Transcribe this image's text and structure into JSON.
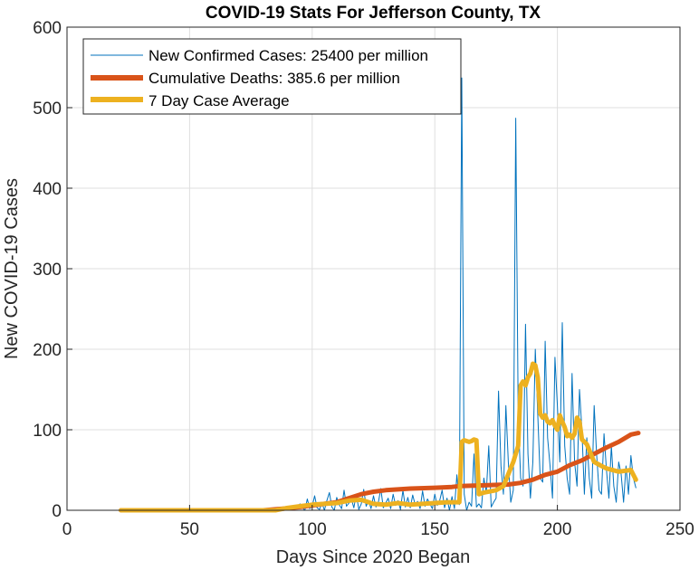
{
  "chart_data": {
    "type": "line",
    "title": "COVID-19 Stats For Jefferson County, TX",
    "xlabel": "Days Since 2020 Began",
    "ylabel": "New COVID-19 Cases",
    "xlim": [
      0,
      250
    ],
    "ylim": [
      0,
      600
    ],
    "xticks": [
      0,
      50,
      100,
      150,
      200,
      250
    ],
    "yticks": [
      0,
      100,
      200,
      300,
      400,
      500,
      600
    ],
    "grid": true,
    "legend_position": "top-left",
    "series": [
      {
        "name": "New Confirmed Cases: 25400 per million",
        "color": "#0072BD",
        "style": "thin",
        "x": [
          22,
          40,
          60,
          80,
          85,
          88,
          90,
          92,
          94,
          95,
          96,
          97,
          98,
          99,
          100,
          101,
          102,
          103,
          104,
          105,
          106,
          107,
          108,
          109,
          110,
          111,
          112,
          113,
          114,
          115,
          116,
          117,
          118,
          119,
          120,
          121,
          122,
          123,
          124,
          125,
          126,
          127,
          128,
          129,
          130,
          131,
          132,
          133,
          134,
          135,
          136,
          137,
          138,
          139,
          140,
          141,
          142,
          143,
          144,
          145,
          146,
          147,
          148,
          149,
          150,
          151,
          152,
          153,
          154,
          155,
          156,
          157,
          158,
          159,
          160,
          161,
          162,
          163,
          164,
          165,
          166,
          167,
          168,
          169,
          170,
          171,
          172,
          173,
          174,
          175,
          176,
          177,
          178,
          179,
          180,
          181,
          182,
          183,
          184,
          185,
          186,
          187,
          188,
          189,
          190,
          191,
          192,
          193,
          194,
          195,
          196,
          197,
          198,
          199,
          200,
          201,
          202,
          203,
          204,
          205,
          206,
          207,
          208,
          209,
          210,
          211,
          212,
          213,
          214,
          215,
          216,
          217,
          218,
          219,
          220,
          221,
          222,
          223,
          224,
          225,
          226,
          227,
          228,
          229,
          230,
          231,
          232
        ],
        "y": [
          0,
          0,
          0,
          0,
          0,
          1,
          2,
          0,
          4,
          8,
          3,
          0,
          14,
          2,
          5,
          18,
          3,
          1,
          9,
          0,
          12,
          22,
          4,
          0,
          16,
          7,
          2,
          25,
          5,
          9,
          14,
          3,
          20,
          1,
          8,
          26,
          5,
          12,
          2,
          18,
          4,
          10,
          27,
          3,
          9,
          15,
          2,
          20,
          6,
          12,
          1,
          25,
          4,
          16,
          3,
          19,
          7,
          11,
          2,
          24,
          5,
          14,
          8,
          2,
          20,
          6,
          12,
          25,
          3,
          15,
          0,
          17,
          2,
          44,
          7,
          537,
          20,
          0,
          10,
          5,
          70,
          4,
          8,
          3,
          40,
          22,
          80,
          4,
          10,
          15,
          148,
          55,
          20,
          130,
          60,
          10,
          25,
          487,
          120,
          40,
          30,
          231,
          70,
          15,
          60,
          200,
          120,
          40,
          35,
          210,
          90,
          55,
          15,
          190,
          130,
          60,
          233,
          80,
          40,
          20,
          170,
          60,
          30,
          150,
          100,
          20,
          90,
          40,
          15,
          130,
          70,
          25,
          20,
          95,
          50,
          15,
          80,
          30,
          10,
          60,
          45,
          10,
          55,
          20,
          68,
          40,
          28
        ]
      },
      {
        "name": "Cumulative Deaths: 385.6 per million",
        "color": "#D95319",
        "style": "thick",
        "x": [
          22,
          50,
          80,
          88,
          95,
          105,
          110,
          115,
          120,
          125,
          130,
          140,
          150,
          157,
          160,
          170,
          180,
          185,
          190,
          195,
          200,
          205,
          210,
          215,
          220,
          225,
          230,
          233
        ],
        "y": [
          0,
          0,
          0,
          2,
          4,
          8,
          10,
          15,
          20,
          23,
          25,
          27,
          28,
          29,
          30,
          31,
          32,
          34,
          38,
          44,
          48,
          56,
          62,
          70,
          78,
          85,
          94,
          96
        ]
      },
      {
        "name": "7 Day Case Average",
        "color": "#EDB120",
        "style": "thick",
        "x": [
          22,
          50,
          85,
          90,
          95,
          100,
          105,
          110,
          115,
          120,
          125,
          130,
          135,
          140,
          145,
          150,
          155,
          160,
          161,
          162,
          163,
          164,
          165,
          166,
          167,
          168,
          170,
          175,
          178,
          180,
          182,
          184,
          185,
          186,
          187,
          188,
          189,
          190,
          191,
          192,
          193,
          194,
          195,
          196,
          197,
          198,
          199,
          200,
          201,
          202,
          203,
          204,
          205,
          206,
          207,
          208,
          209,
          210,
          212,
          215,
          218,
          220,
          225,
          230,
          232
        ],
        "y": [
          0,
          0,
          0,
          3,
          5,
          7,
          8,
          9,
          12,
          13,
          8,
          7,
          9,
          7,
          8,
          9,
          10,
          10,
          85,
          87,
          86,
          85,
          86,
          88,
          87,
          20,
          22,
          25,
          30,
          45,
          60,
          80,
          155,
          160,
          155,
          165,
          170,
          182,
          180,
          165,
          120,
          115,
          118,
          110,
          108,
          112,
          105,
          100,
          118,
          110,
          103,
          92,
          94,
          90,
          95,
          115,
          110,
          88,
          82,
          60,
          55,
          52,
          48,
          50,
          38
        ]
      }
    ]
  }
}
